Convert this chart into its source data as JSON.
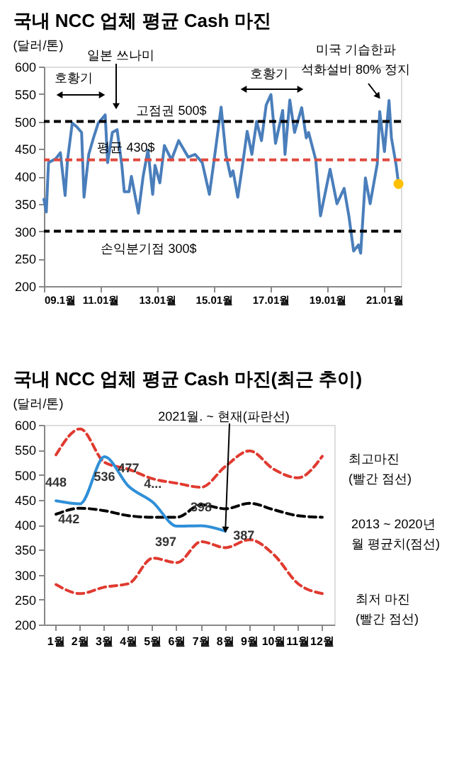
{
  "chart_data": [
    {
      "type": "line",
      "title": "국내 NCC 업체 평균 Cash 마진",
      "ylabel": "(달러/톤)",
      "x": [
        "2009-01",
        "2009-02",
        "2009-03",
        "2009-06",
        "2009-08",
        "2009-10",
        "2009-11",
        "2010-01",
        "2010-03",
        "2010-05",
        "2010-06",
        "2010-08",
        "2010-10",
        "2010-12",
        "2011-03",
        "2011-04",
        "2011-06",
        "2011-08",
        "2011-10",
        "2011-11",
        "2012-01",
        "2012-02",
        "2012-05",
        "2012-07",
        "2012-09",
        "2012-11",
        "2012-12",
        "2013-02",
        "2013-04",
        "2013-07",
        "2013-10",
        "2014-02",
        "2014-05",
        "2014-08",
        "2014-11",
        "2015-01",
        "2015-04",
        "2015-06",
        "2015-08",
        "2015-09",
        "2015-11",
        "2016-01",
        "2016-03",
        "2016-05",
        "2016-07",
        "2016-09",
        "2016-11",
        "2017-01",
        "2017-03",
        "2017-06",
        "2017-07",
        "2017-09",
        "2017-11",
        "2018-02",
        "2018-04",
        "2018-05",
        "2018-08",
        "2018-10",
        "2019-02",
        "2019-05",
        "2019-08",
        "2019-10",
        "2019-12",
        "2020-02",
        "2020-03",
        "2020-05",
        "2020-07",
        "2020-10",
        "2020-11",
        "2021-01",
        "2021-03",
        "2021-04",
        "2021-06",
        "2021-07"
      ],
      "series": [
        {
          "type": "line",
          "color": "#4a7ebb",
          "values": [
            358,
            335,
            425,
            432,
            443,
            365,
            430,
            497,
            490,
            480,
            362,
            440,
            470,
            497,
            512,
            425,
            480,
            485,
            420,
            372,
            372,
            400,
            333,
            400,
            448,
            367,
            420,
            388,
            456,
            430,
            465,
            435,
            440,
            425,
            367,
            430,
            526,
            440,
            400,
            410,
            362,
            420,
            482,
            440,
            500,
            465,
            530,
            549,
            460,
            520,
            440,
            539,
            480,
            525,
            470,
            480,
            430,
            328,
            413,
            350,
            378,
            328,
            264,
            275,
            260,
            397,
            350,
            423,
            518,
            445,
            538,
            470,
            420,
            386
          ]
        },
        {
          "type": "scatter",
          "color": "#ffc000",
          "x": [
            "2021-07"
          ],
          "values": [
            386
          ]
        }
      ],
      "xlim": [
        "2009-01",
        "2021-08"
      ],
      "xticks": [
        {
          "value": "2009-01",
          "label": "09.1월"
        },
        {
          "value": "2011-01",
          "label": "11.01월"
        },
        {
          "value": "2013-01",
          "label": "13.01월"
        },
        {
          "value": "2015-01",
          "label": "15.01월"
        },
        {
          "value": "2017-01",
          "label": "17.01월"
        },
        {
          "value": "2019-01",
          "label": "19.01월"
        },
        {
          "value": "2021-01",
          "label": "21.01월"
        }
      ],
      "ylim": [
        200,
        600
      ],
      "yticks": [
        200,
        250,
        300,
        350,
        400,
        450,
        500,
        550,
        600
      ],
      "ref_lines": [
        {
          "axis": "y",
          "value": 500,
          "label": "고점권 500$",
          "color": "#000000",
          "line_style": "dashed"
        },
        {
          "axis": "y",
          "value": 430,
          "label": "평균 430$",
          "color": "#e04a3f",
          "line_style": "dashed"
        },
        {
          "axis": "y",
          "value": 300,
          "label": "손익분기점 300$",
          "color": "#000000",
          "line_style": "dashed"
        }
      ],
      "annotations": [
        "호황기",
        "일본 쓰나미",
        "호황기",
        "미국 기습한파\n석화설비 80% 정지"
      ],
      "grid": false,
      "legend": false
    },
    {
      "type": "line",
      "title": "국내 NCC 업체 평균 Cash 마진(최근 추이)",
      "ylabel": "(달러/톤)",
      "categories": [
        "1월",
        "2월",
        "3월",
        "4월",
        "5월",
        "6월",
        "7월",
        "8월",
        "9월",
        "10월",
        "11월",
        "12월"
      ],
      "series": [
        {
          "name": "최고마진\n(빨간 점선)",
          "color": "#e03a30",
          "line_style": "dashed",
          "values": [
            540,
            592,
            525,
            511,
            492,
            483,
            475,
            517,
            548,
            511,
            494,
            537
          ]
        },
        {
          "name": "2013 ~ 2020년\n월 평균치(점선)",
          "color": "#000000",
          "line_style": "dashed",
          "values": [
            421,
            433,
            428,
            418,
            415,
            415,
            440,
            432,
            443,
            430,
            418,
            415
          ]
        },
        {
          "name": "최저 마진\n(빨간 점선)",
          "color": "#e03a30",
          "line_style": "dashed",
          "values": [
            280,
            262,
            275,
            282,
            333,
            324,
            366,
            354,
            370,
            340,
            282,
            262
          ]
        },
        {
          "color": "#2f8fd8",
          "line_style": "solid",
          "values": [
            448,
            442,
            536,
            477,
            445,
            397,
            398,
            387,
            null,
            null,
            null,
            null
          ],
          "value_labels": [
            "448",
            "442",
            "536",
            "477",
            "4...",
            "397",
            "398",
            "387",
            null,
            null,
            null,
            null
          ]
        }
      ],
      "ylim": [
        200,
        600
      ],
      "yticks": [
        200,
        250,
        300,
        350,
        400,
        450,
        500,
        550,
        600
      ],
      "annotations": [
        {
          "text": "2021월. ~ 현재(파란선)",
          "x": "8월",
          "y": 390
        }
      ],
      "grid": false,
      "legend": false
    }
  ]
}
